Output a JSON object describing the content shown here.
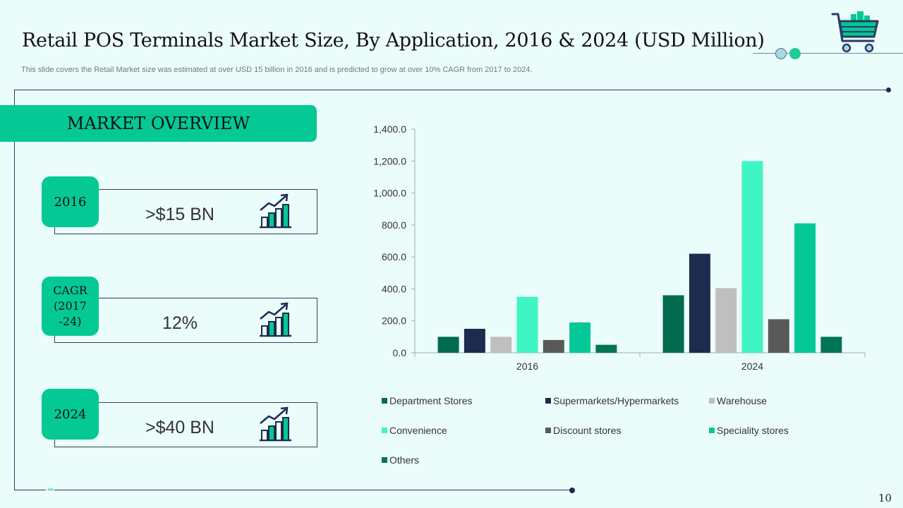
{
  "header": {
    "title": "Retail POS Terminals Market Size, By Application, 2016 & 2024 (USD Million)",
    "subtitle": "This slide covers the Retail Market size was estimated at over  USD 15 billion in 2016 and is predicted to grow at over  10% CAGR from 2017 to 2024.",
    "logo_icon": "shopping-cart-icon"
  },
  "overview": {
    "title": "MARKET OVERVIEW",
    "stats": [
      {
        "tag": "2016",
        "value": ">$15 BN",
        "icon": "growth-chart-icon"
      },
      {
        "tag_lines": [
          "CAGR",
          "(2017",
          "-24)"
        ],
        "value": "12%",
        "icon": "growth-chart-icon"
      },
      {
        "tag": "2024",
        "value": ">$40 BN",
        "icon": "growth-chart-icon"
      }
    ]
  },
  "colors": {
    "accent": "#04c995",
    "background": "#ebfdfa",
    "navy": "#1e2a50"
  },
  "page_number": "10",
  "chart_data": {
    "type": "bar",
    "title": "",
    "xlabel": "",
    "ylabel": "",
    "categories": [
      "2016",
      "2024"
    ],
    "ylim": [
      0,
      1400
    ],
    "yticks": [
      0,
      200,
      400,
      600,
      800,
      1000,
      1200,
      1400
    ],
    "ytick_labels": [
      "0.0",
      "200.0",
      "400.0",
      "600.0",
      "800.0",
      "1,000.0",
      "1,200.0",
      "1,400.0"
    ],
    "grid": false,
    "legend_position": "bottom",
    "series": [
      {
        "name": "Department Stores",
        "color": "#006b4e",
        "values": [
          100,
          360
        ]
      },
      {
        "name": "Supermarkets/Hypermarkets",
        "color": "#1d2b4f",
        "values": [
          150,
          620
        ]
      },
      {
        "name": "Warehouse",
        "color": "#bfbfbf",
        "values": [
          100,
          405
        ]
      },
      {
        "name": "Convenience",
        "color": "#3ff5c4",
        "values": [
          350,
          1200
        ]
      },
      {
        "name": "Discount stores",
        "color": "#595959",
        "values": [
          80,
          210
        ]
      },
      {
        "name": "Speciality stores",
        "color": "#05c898",
        "values": [
          190,
          810
        ]
      },
      {
        "name": "Others",
        "color": "#007556",
        "values": [
          50,
          100
        ]
      }
    ]
  }
}
